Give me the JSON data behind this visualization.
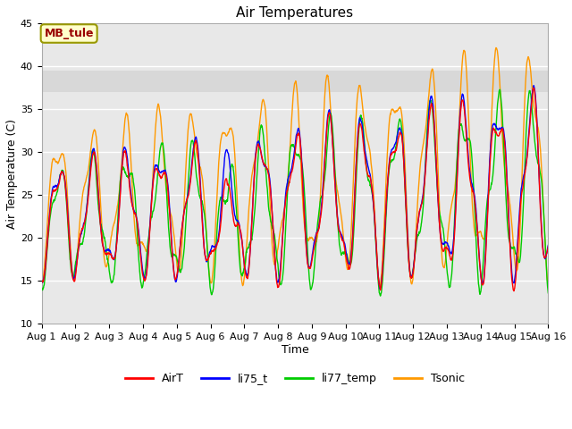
{
  "title": "Air Temperatures",
  "xlabel": "Time",
  "ylabel": "Air Temperature (C)",
  "ylim": [
    10,
    45
  ],
  "xlim": [
    0,
    15
  ],
  "background_color": "#ffffff",
  "plot_bg_color": "#e8e8e8",
  "grid_color": "#ffffff",
  "highlight_band": [
    37.0,
    39.5
  ],
  "highlight_color": "#d8d8d8",
  "annotation_text": "MB_tule",
  "annotation_bg": "#ffffcc",
  "annotation_border": "#999900",
  "annotation_text_color": "#990000",
  "colors": {
    "AirT": "#ff0000",
    "li75_t": "#0000ff",
    "li77_temp": "#00cc00",
    "Tsonic": "#ff9900"
  },
  "x_tick_labels": [
    "Aug 1",
    "Aug 2",
    "Aug 3",
    "Aug 4",
    "Aug 5",
    "Aug 6",
    "Aug 7",
    "Aug 8",
    "Aug 9",
    "Aug 10",
    "Aug 11",
    "Aug 12",
    "Aug 13",
    "Aug 14",
    "Aug 15",
    "Aug 16"
  ],
  "y_ticks": [
    10,
    15,
    20,
    25,
    30,
    35,
    40,
    45
  ],
  "title_fontsize": 11,
  "axis_label_fontsize": 9,
  "tick_fontsize": 8
}
